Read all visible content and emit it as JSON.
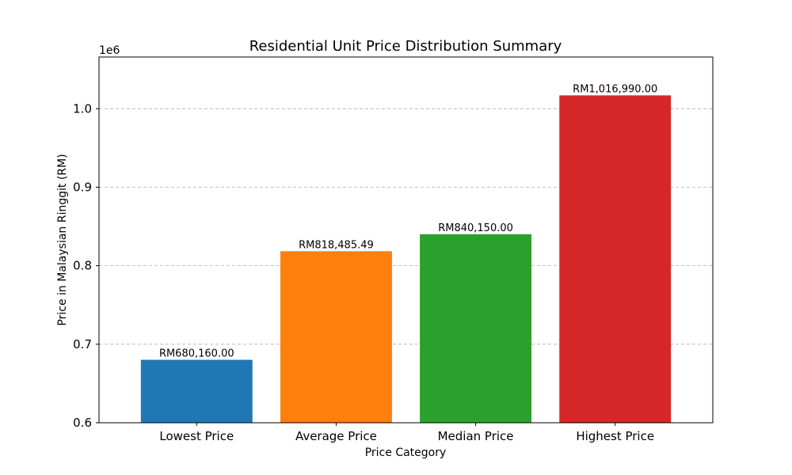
{
  "chart_data": {
    "type": "bar",
    "title": "Residential Unit Price Distribution Summary",
    "xlabel": "Price Category",
    "ylabel": "Price in Malaysian Ringgit (RM)",
    "y_offset_label": "1e6",
    "categories": [
      "Lowest Price",
      "Average Price",
      "Median Price",
      "Highest Price"
    ],
    "values": [
      680160.0,
      818485.49,
      840150.0,
      1016990.0
    ],
    "data_labels": [
      "RM680,160.00",
      "RM818,485.49",
      "RM840,150.00",
      "RM1,016,990.00"
    ],
    "colors": [
      "#1f77b4",
      "#ff7f0e",
      "#2ca02c",
      "#d62728"
    ],
    "ylim": [
      600000,
      1065840
    ],
    "yticks": [
      600000,
      700000,
      800000,
      900000,
      1000000
    ],
    "ytick_labels": [
      "0.6",
      "0.7",
      "0.8",
      "0.9",
      "1.0"
    ],
    "grid": "y-dashed",
    "legend": "none"
  }
}
